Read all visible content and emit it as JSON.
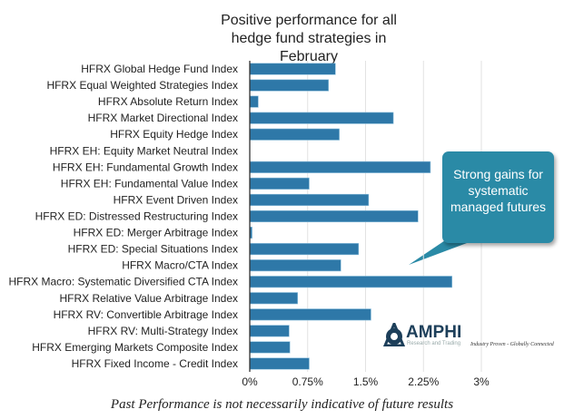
{
  "chart_data": {
    "type": "bar",
    "orientation": "horizontal",
    "title": "Positive performance for all hedge fund strategies in February",
    "categories": [
      "HFRX Global Hedge Fund Index",
      "HFRX Equal Weighted Strategies Index",
      "HFRX Absolute Return Index",
      "HFRX Market Directional Index",
      "HFRX Equity Hedge Index",
      "HFRX EH: Equity Market Neutral Index",
      "HFRX EH: Fundamental Growth Index",
      "HFRX EH: Fundamental Value Index",
      "HFRX Event Driven Index",
      "HFRX ED: Distressed Restructuring Index",
      "HFRX ED: Merger Arbitrage Index",
      "HFRX ED: Special Situations Index",
      "HFRX Macro/CTA Index",
      "HFRX Macro: Systematic Diversified CTA Index",
      "HFRX Relative Value Arbitrage Index",
      "HFRX RV: Convertible Arbitrage Index",
      "HFRX RV: Multi-Strategy Index",
      "HFRX Emerging Markets Composite Index",
      "HFRX Fixed Income - Credit Index"
    ],
    "values": [
      1.11,
      1.02,
      0.11,
      1.86,
      1.16,
      0.0,
      2.34,
      0.77,
      1.54,
      2.18,
      0.03,
      1.41,
      1.18,
      2.62,
      0.62,
      1.57,
      0.51,
      0.52,
      0.77
    ],
    "unit": "%",
    "xlim": [
      0,
      3
    ],
    "xticks": [
      "0%",
      "0.75%",
      "1.5%",
      "2.25%",
      "3%"
    ],
    "xtick_values": [
      0,
      0.75,
      1.5,
      2.25,
      3
    ],
    "grid": "vertical",
    "bar_color": "#2e78a8",
    "xlabel": "",
    "ylabel": ""
  },
  "callout": {
    "text": "Strong gains for systematic managed futures",
    "color": "#2a8aa6"
  },
  "logo": {
    "name": "AMPHI",
    "subtitle": "Research and Trading",
    "tagline": "Industry Proven - Globally Connected"
  },
  "footer": "Past Performance is not necessarily indicative of future results"
}
